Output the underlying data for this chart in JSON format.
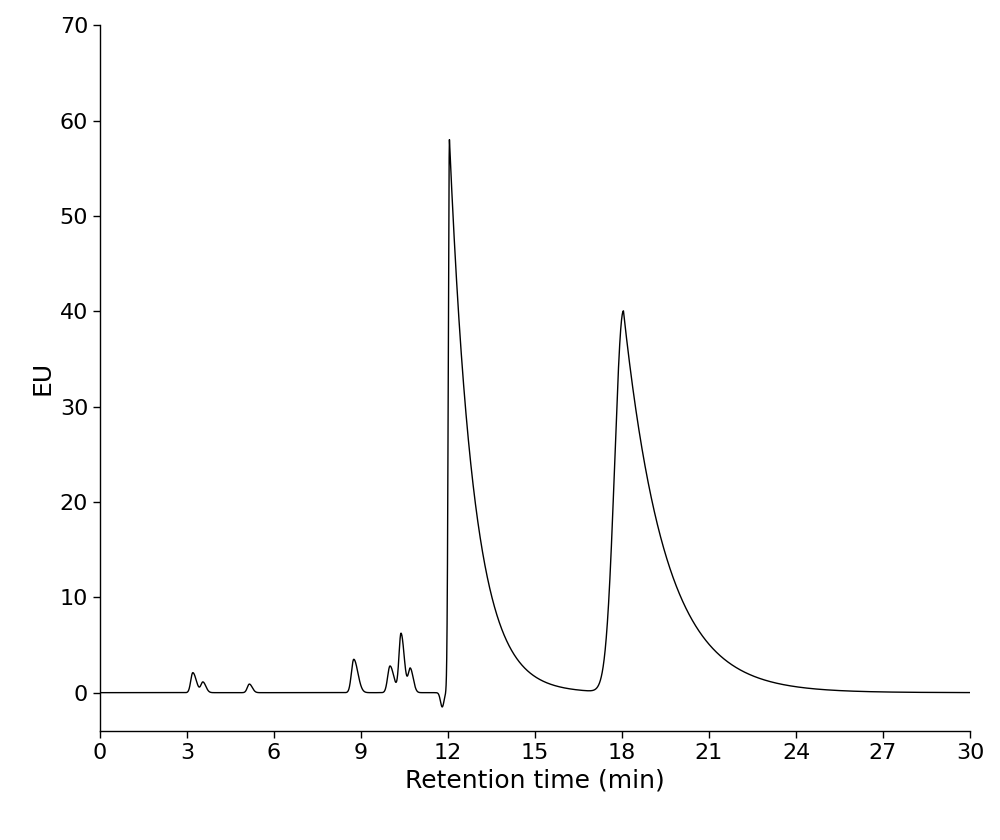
{
  "title": "",
  "xlabel": "Retention time (min)",
  "ylabel": "EU",
  "xlim": [
    0,
    30
  ],
  "ylim": [
    -4,
    70
  ],
  "xticks": [
    0,
    3,
    6,
    9,
    12,
    15,
    18,
    21,
    24,
    27,
    30
  ],
  "yticks": [
    0,
    10,
    20,
    30,
    40,
    50,
    60,
    70
  ],
  "line_color": "#000000",
  "bg_color": "#ffffff",
  "figsize": [
    10.0,
    8.4
  ],
  "dpi": 100,
  "xlabel_fontsize": 18,
  "ylabel_fontsize": 18,
  "tick_fontsize": 16
}
